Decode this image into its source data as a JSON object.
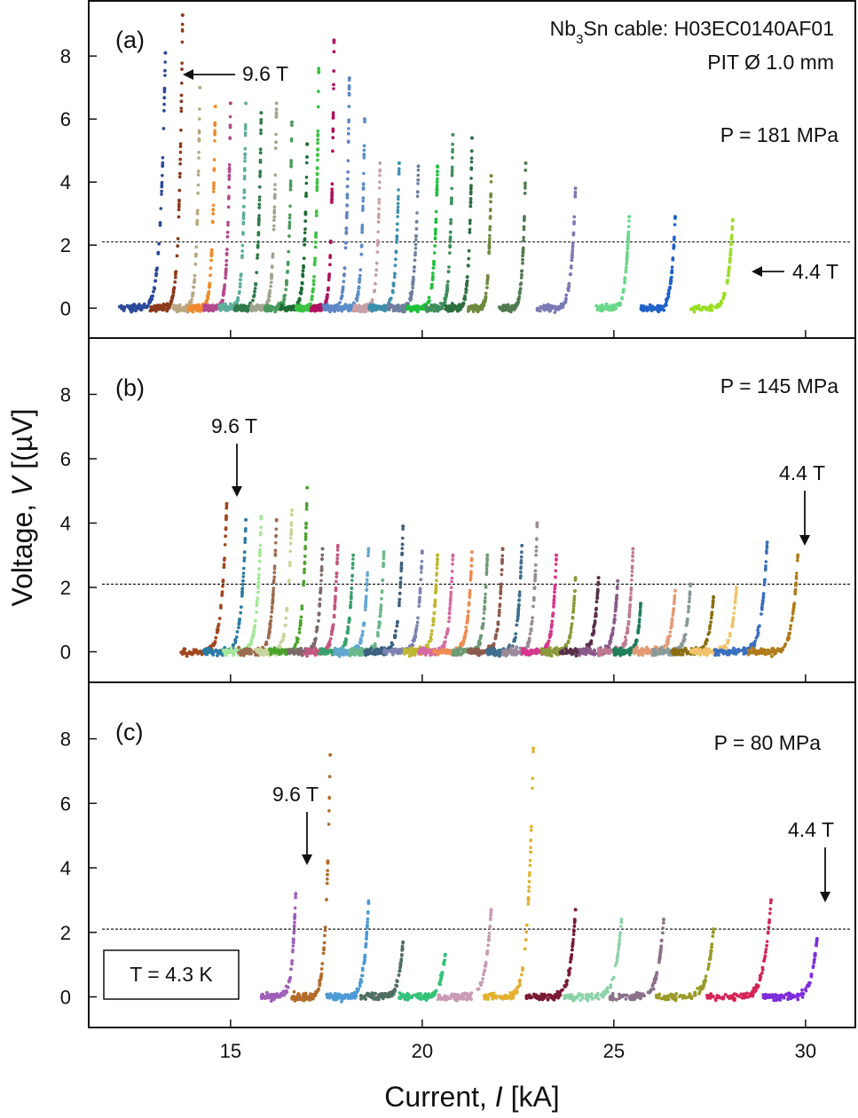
{
  "chart_data": {
    "type": "scatter",
    "title": "",
    "xlabel_prefix": "Current, ",
    "xlabel_var": "I",
    "xlabel_unit": " [kA]",
    "ylabel_prefix": "Voltage, ",
    "ylabel_var": "V",
    "ylabel_unit": " [(µV]",
    "xlim": [
      11.3,
      31.3
    ],
    "ylim": [
      -0.95,
      9.75
    ],
    "x_ticks": [
      15,
      20,
      25,
      30
    ],
    "x_tick_labels": [
      "15",
      "20",
      "25",
      "30"
    ],
    "y_ticks": [
      0,
      2,
      4,
      6,
      8
    ],
    "y_tick_labels": [
      "0",
      "2",
      "4",
      "6",
      "8"
    ],
    "criterion_voltage": 2.1,
    "cable_line1_pre": "Nb",
    "cable_line1_sub": "3",
    "cable_line1_post": "Sn cable: H03EC0140AF01",
    "cable_line2": "PIT Ø 1.0 mm",
    "temperature_label": "T = 4.3 K",
    "panels": [
      {
        "label": "(a)",
        "pressure": "P = 181 MPa",
        "start_field": "9.6 T",
        "end_field": "4.4 T",
        "series": [
          {
            "name": "9.6 T",
            "x_start": 12.1,
            "x_end": 13.3,
            "peak": 8.1,
            "color": "#2c4a9a"
          },
          {
            "x_start": 12.9,
            "x_end": 13.75,
            "peak": 9.3,
            "color": "#8c3a1c"
          },
          {
            "x_start": 13.5,
            "x_end": 14.2,
            "peak": 7.0,
            "color": "#b9a782"
          },
          {
            "x_start": 13.9,
            "x_end": 14.6,
            "peak": 6.4,
            "color": "#f08a2c"
          },
          {
            "x_start": 14.3,
            "x_end": 15.0,
            "peak": 6.5,
            "color": "#b4488e"
          },
          {
            "x_start": 14.7,
            "x_end": 15.4,
            "peak": 6.5,
            "color": "#5fae9c"
          },
          {
            "x_start": 15.1,
            "x_end": 15.8,
            "peak": 6.2,
            "color": "#2f7a4a"
          },
          {
            "x_start": 15.5,
            "x_end": 16.2,
            "peak": 6.5,
            "color": "#a0a58f"
          },
          {
            "x_start": 15.9,
            "x_end": 16.6,
            "peak": 5.9,
            "color": "#4a9a5e"
          },
          {
            "x_start": 16.3,
            "x_end": 17.0,
            "peak": 5.2,
            "color": "#1e6b34"
          },
          {
            "x_start": 16.7,
            "x_end": 17.3,
            "peak": 7.6,
            "color": "#3cc242"
          },
          {
            "x_start": 17.1,
            "x_end": 17.7,
            "peak": 8.5,
            "color": "#b0125e"
          },
          {
            "x_start": 17.4,
            "x_end": 18.1,
            "peak": 7.3,
            "color": "#5f86c4"
          },
          {
            "x_start": 17.8,
            "x_end": 18.5,
            "peak": 6.0,
            "color": "#5b8ec9"
          },
          {
            "x_start": 18.2,
            "x_end": 18.9,
            "peak": 4.6,
            "color": "#c8a0a5"
          },
          {
            "x_start": 18.6,
            "x_end": 19.4,
            "peak": 4.6,
            "color": "#3c8fae"
          },
          {
            "x_start": 19.1,
            "x_end": 19.9,
            "peak": 4.5,
            "color": "#6f7e9c"
          },
          {
            "x_start": 19.6,
            "x_end": 20.4,
            "peak": 4.5,
            "color": "#1fbf3a"
          },
          {
            "x_start": 20.1,
            "x_end": 20.8,
            "peak": 5.5,
            "color": "#3f8f5c"
          },
          {
            "x_start": 20.6,
            "x_end": 21.3,
            "peak": 5.4,
            "color": "#2f6f3e"
          },
          {
            "x_start": 21.2,
            "x_end": 21.8,
            "peak": 4.2,
            "color": "#6e8a3e"
          },
          {
            "x_start": 22.0,
            "x_end": 22.7,
            "peak": 4.6,
            "color": "#4f7a4f"
          },
          {
            "x_start": 23.0,
            "x_end": 24.0,
            "peak": 3.8,
            "color": "#7a7ab5"
          },
          {
            "x_start": 24.5,
            "x_end": 25.4,
            "peak": 2.9,
            "color": "#69d889"
          },
          {
            "x_start": 25.7,
            "x_end": 26.6,
            "peak": 2.9,
            "color": "#1e62c9"
          },
          {
            "name": "4.4 T",
            "x_start": 27.0,
            "x_end": 28.1,
            "peak": 2.8,
            "color": "#9ade24"
          }
        ]
      },
      {
        "label": "(b)",
        "pressure": "P = 145 MPa",
        "start_field": "9.6 T",
        "end_field": "4.4 T",
        "series": [
          {
            "name": "9.6 T",
            "x_start": 13.7,
            "x_end": 14.9,
            "peak": 4.6,
            "color": "#a1461f"
          },
          {
            "x_start": 14.3,
            "x_end": 15.4,
            "peak": 4.1,
            "color": "#2c7aa5"
          },
          {
            "x_start": 14.8,
            "x_end": 15.8,
            "peak": 4.2,
            "color": "#a6e89b"
          },
          {
            "x_start": 15.2,
            "x_end": 16.2,
            "peak": 4.1,
            "color": "#9c6a4f"
          },
          {
            "x_start": 15.6,
            "x_end": 16.6,
            "peak": 4.4,
            "color": "#c8d69c"
          },
          {
            "x_start": 16.0,
            "x_end": 17.0,
            "peak": 5.1,
            "color": "#4ba32c"
          },
          {
            "x_start": 16.5,
            "x_end": 17.4,
            "peak": 3.2,
            "color": "#7c6a6a"
          },
          {
            "x_start": 16.9,
            "x_end": 17.8,
            "peak": 3.3,
            "color": "#c4577f"
          },
          {
            "x_start": 17.3,
            "x_end": 18.2,
            "peak": 3.0,
            "color": "#3aa06c"
          },
          {
            "x_start": 17.7,
            "x_end": 18.6,
            "peak": 3.2,
            "color": "#64a8d2"
          },
          {
            "x_start": 18.1,
            "x_end": 19.0,
            "peak": 3.1,
            "color": "#6cb88a"
          },
          {
            "x_start": 18.5,
            "x_end": 19.5,
            "peak": 3.9,
            "color": "#3c5f7f"
          },
          {
            "x_start": 19.0,
            "x_end": 20.0,
            "peak": 3.1,
            "color": "#7d83b0"
          },
          {
            "x_start": 19.5,
            "x_end": 20.4,
            "peak": 3.0,
            "color": "#bfb72e"
          },
          {
            "x_start": 19.9,
            "x_end": 20.8,
            "peak": 3.0,
            "color": "#d46aa2"
          },
          {
            "x_start": 20.3,
            "x_end": 21.3,
            "peak": 3.1,
            "color": "#ef8b50"
          },
          {
            "x_start": 20.8,
            "x_end": 21.7,
            "peak": 3.0,
            "color": "#6f9b73"
          },
          {
            "x_start": 21.2,
            "x_end": 22.1,
            "peak": 3.2,
            "color": "#8c5a4a"
          },
          {
            "x_start": 21.7,
            "x_end": 22.6,
            "peak": 3.3,
            "color": "#3f6f8f"
          },
          {
            "x_start": 22.1,
            "x_end": 23.0,
            "peak": 4.0,
            "color": "#9a8a9a"
          },
          {
            "x_start": 22.6,
            "x_end": 23.5,
            "peak": 3.0,
            "color": "#d6368c"
          },
          {
            "x_start": 23.1,
            "x_end": 24.0,
            "peak": 2.3,
            "color": "#8a9a3a"
          },
          {
            "x_start": 23.6,
            "x_end": 24.6,
            "peak": 2.3,
            "color": "#5a2f4a"
          },
          {
            "x_start": 24.1,
            "x_end": 25.1,
            "peak": 2.2,
            "color": "#8a5a8a"
          },
          {
            "x_start": 24.6,
            "x_end": 25.5,
            "peak": 3.2,
            "color": "#c07a90"
          },
          {
            "x_start": 25.0,
            "x_end": 25.7,
            "peak": 1.5,
            "color": "#1f7f5a"
          },
          {
            "x_start": 25.5,
            "x_end": 26.6,
            "peak": 1.9,
            "color": "#e39a73"
          },
          {
            "x_start": 26.0,
            "x_end": 27.0,
            "peak": 2.1,
            "color": "#8a9a9a"
          },
          {
            "x_start": 26.5,
            "x_end": 27.6,
            "peak": 1.7,
            "color": "#8a6f12"
          },
          {
            "x_start": 27.0,
            "x_end": 28.2,
            "peak": 2.0,
            "color": "#f0c36c"
          },
          {
            "x_start": 27.6,
            "x_end": 29.0,
            "peak": 3.4,
            "color": "#3a6fbf"
          },
          {
            "name": "4.4 T",
            "x_start": 28.5,
            "x_end": 29.8,
            "peak": 3.0,
            "color": "#b07a1a"
          }
        ]
      },
      {
        "label": "(c)",
        "pressure": "P = 80 MPa",
        "start_field": "9.6 T",
        "end_field": "4.4 T",
        "series": [
          {
            "name": "9.6 T",
            "x_start": 15.8,
            "x_end": 16.7,
            "peak": 3.2,
            "color": "#9d5fb8"
          },
          {
            "x_start": 16.6,
            "x_end": 17.6,
            "peak": 7.5,
            "color": "#b36b2a"
          },
          {
            "x_start": 17.5,
            "x_end": 18.6,
            "peak": 2.9,
            "color": "#4d9ad6"
          },
          {
            "x_start": 18.4,
            "x_end": 19.5,
            "peak": 1.7,
            "color": "#4f6f60"
          },
          {
            "x_start": 19.4,
            "x_end": 20.6,
            "peak": 1.3,
            "color": "#35c27a"
          },
          {
            "x_start": 20.4,
            "x_end": 21.8,
            "peak": 2.7,
            "color": "#c89ab5"
          },
          {
            "x_start": 21.6,
            "x_end": 22.9,
            "peak": 7.7,
            "color": "#e3b12f"
          },
          {
            "x_start": 22.7,
            "x_end": 24.0,
            "peak": 2.7,
            "color": "#7a1a32"
          },
          {
            "x_start": 23.7,
            "x_end": 25.2,
            "peak": 2.4,
            "color": "#8ed2a8"
          },
          {
            "x_start": 24.9,
            "x_end": 26.3,
            "peak": 2.4,
            "color": "#8a6f8a"
          },
          {
            "x_start": 26.1,
            "x_end": 27.6,
            "peak": 2.1,
            "color": "#9a9a2a"
          },
          {
            "x_start": 27.4,
            "x_end": 29.1,
            "peak": 3.0,
            "color": "#d42456"
          },
          {
            "name": "4.4 T",
            "x_start": 28.9,
            "x_end": 30.3,
            "peak": 1.8,
            "color": "#7e2ddc"
          }
        ]
      }
    ]
  }
}
